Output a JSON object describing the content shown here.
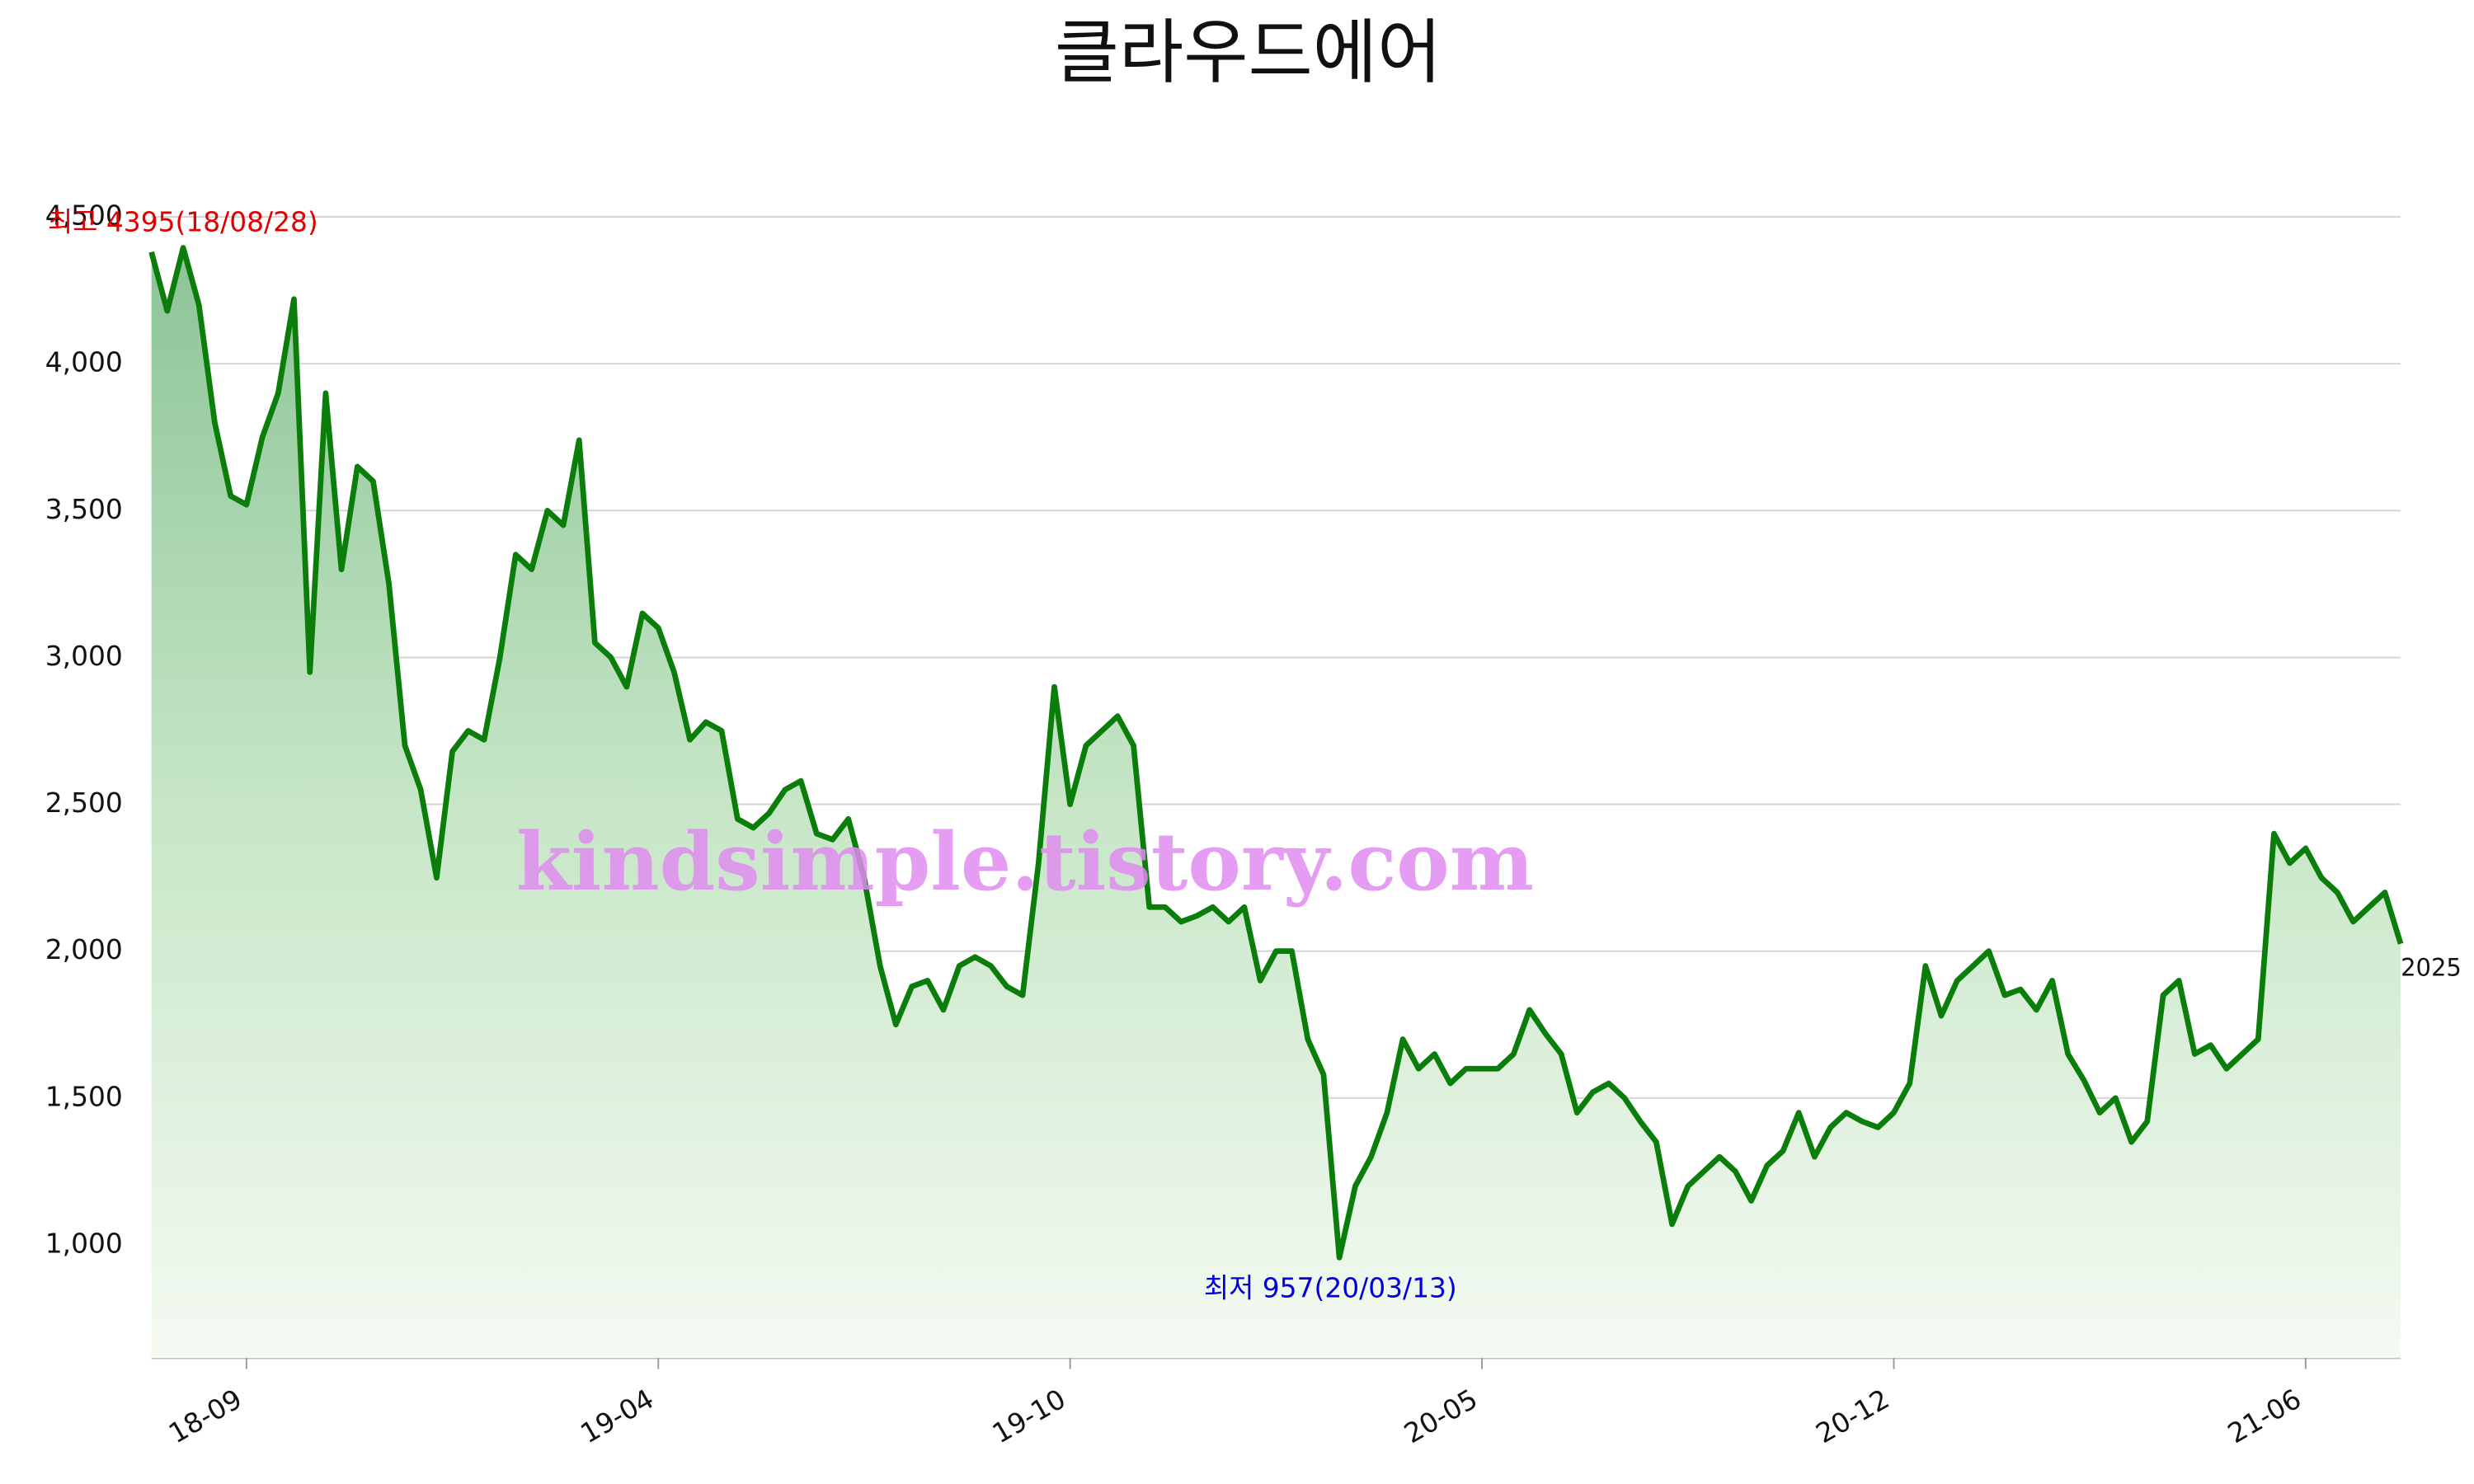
{
  "chart_data": {
    "type": "area",
    "title": "클라우드에어",
    "watermark": "kindsimple.tistory.com",
    "annotations": [
      "최고 4395(18/08/28)",
      "최저 957(20/03/13)",
      "2025"
    ],
    "categories": [
      null,
      null,
      null,
      null,
      null,
      null,
      "18-09",
      null,
      null,
      null,
      null,
      null,
      null,
      null,
      null,
      null,
      null,
      null,
      null,
      null,
      null,
      null,
      null,
      null,
      null,
      null,
      null,
      null,
      null,
      null,
      null,
      null,
      "19-04",
      null,
      null,
      null,
      null,
      null,
      null,
      null,
      null,
      null,
      null,
      null,
      null,
      null,
      null,
      null,
      null,
      null,
      null,
      null,
      null,
      null,
      null,
      null,
      null,
      null,
      "19-10",
      null,
      null,
      null,
      null,
      null,
      null,
      null,
      null,
      null,
      null,
      null,
      null,
      null,
      null,
      null,
      null,
      null,
      null,
      null,
      null,
      null,
      null,
      null,
      null,
      null,
      "20-05",
      null,
      null,
      null,
      null,
      null,
      null,
      null,
      null,
      null,
      null,
      null,
      null,
      null,
      null,
      null,
      null,
      null,
      null,
      null,
      null,
      null,
      null,
      null,
      null,
      null,
      "20-12",
      null,
      null,
      null,
      null,
      null,
      null,
      null,
      null,
      null,
      null,
      null,
      null,
      null,
      null,
      null,
      null,
      null,
      null,
      null,
      null,
      null,
      null,
      null,
      null,
      null,
      "21-06",
      null,
      null,
      null,
      null,
      null,
      null
    ],
    "values": [
      4380,
      4180,
      4395,
      4200,
      3800,
      3550,
      3520,
      3750,
      3900,
      4220,
      2950,
      3900,
      3300,
      3650,
      3600,
      3250,
      2700,
      2550,
      2250,
      2680,
      2750,
      2720,
      3000,
      3350,
      3300,
      3500,
      3450,
      3740,
      3050,
      3000,
      2900,
      3150,
      3100,
      2950,
      2720,
      2780,
      2750,
      2450,
      2420,
      2470,
      2550,
      2580,
      2400,
      2380,
      2450,
      2250,
      1950,
      1750,
      1880,
      1900,
      1800,
      1950,
      1980,
      1950,
      1880,
      1850,
      2300,
      2900,
      2500,
      2700,
      2750,
      2800,
      2700,
      2150,
      2150,
      2100,
      2120,
      2150,
      2100,
      2150,
      1900,
      2000,
      2000,
      1700,
      1580,
      957,
      1200,
      1300,
      1450,
      1700,
      1600,
      1650,
      1550,
      1600,
      1600,
      1600,
      1650,
      1800,
      1720,
      1650,
      1450,
      1520,
      1550,
      1500,
      1420,
      1350,
      1070,
      1200,
      1250,
      1300,
      1250,
      1150,
      1270,
      1320,
      1450,
      1300,
      1400,
      1450,
      1420,
      1400,
      1450,
      1550,
      1950,
      1780,
      1900,
      1950,
      2000,
      1850,
      1870,
      1800,
      1900,
      1650,
      1560,
      1450,
      1500,
      1350,
      1420,
      1850,
      1900,
      1650,
      1680,
      1600,
      1650,
      1700,
      2400,
      2300,
      2350,
      2250,
      2200,
      2100,
      2150,
      2200,
      2025
    ],
    "color": "#0a7d0a",
    "ylim": [
      615,
      4500
    ],
    "yticks": [
      {
        "value": 1000,
        "label": "1,000"
      },
      {
        "value": 1500,
        "label": "1,500"
      },
      {
        "value": 2000,
        "label": "2,000"
      },
      {
        "value": 2500,
        "label": "2,500"
      },
      {
        "value": 3000,
        "label": "3,000"
      },
      {
        "value": 3500,
        "label": "3,500"
      },
      {
        "value": 4000,
        "label": "4,000"
      },
      {
        "value": 4500,
        "label": "4,500"
      }
    ],
    "grid": true
  }
}
